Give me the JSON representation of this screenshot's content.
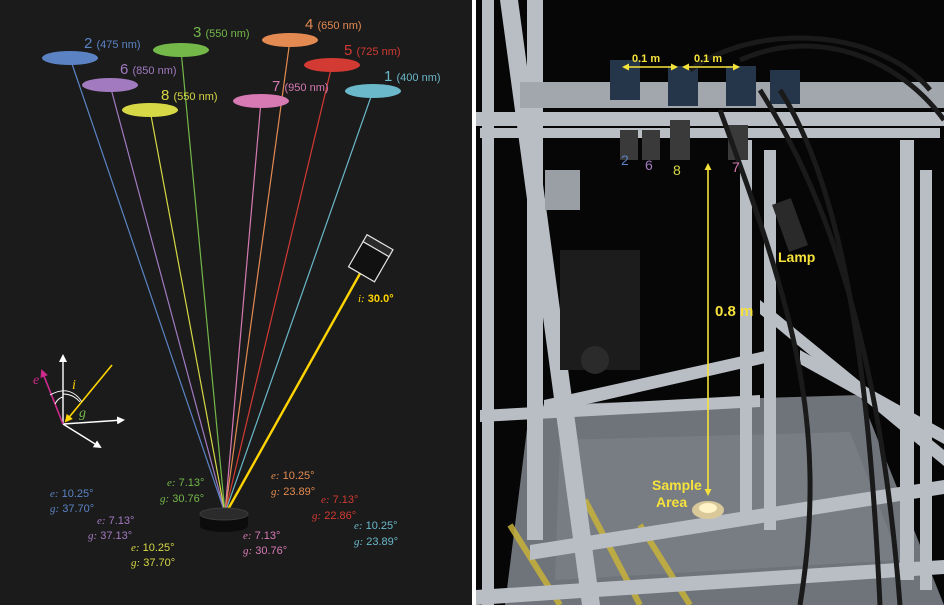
{
  "colors": {
    "c1": "#6ab8c9",
    "c2": "#5b83c4",
    "c3": "#74b84a",
    "c4": "#e28a52",
    "c5": "#d23a33",
    "c6": "#a17ac0",
    "c7": "#d77ab4",
    "c8": "#d6d845",
    "lamp": "#ffd400",
    "white": "#ffffff",
    "e_arrow": "#cc2a8c"
  },
  "cameras": [
    {
      "id": "1",
      "wavelength": "(400 nm)",
      "color": "c1"
    },
    {
      "id": "2",
      "wavelength": "(475 nm)",
      "color": "c2"
    },
    {
      "id": "3",
      "wavelength": "(550 nm)",
      "color": "c3"
    },
    {
      "id": "4",
      "wavelength": "(650 nm)",
      "color": "c4"
    },
    {
      "id": "5",
      "wavelength": "(725 nm)",
      "color": "c5"
    },
    {
      "id": "6",
      "wavelength": "(850 nm)",
      "color": "c6"
    },
    {
      "id": "7",
      "wavelength": "(950 nm)",
      "color": "c7"
    },
    {
      "id": "8",
      "wavelength": "(550 nm)",
      "color": "c8"
    }
  ],
  "light_source": {
    "label": "i:",
    "angle": "30.0°"
  },
  "angle_labels": [
    {
      "cam": "2",
      "e": "10.25°",
      "g": "37.70°"
    },
    {
      "cam": "6",
      "e": "7.13°",
      "g": "37.13°"
    },
    {
      "cam": "8",
      "e": "10.25°",
      "g": "37.70°"
    },
    {
      "cam": "3",
      "e": "7.13°",
      "g": "30.76°"
    },
    {
      "cam": "4",
      "e": "10.25°",
      "g": "23.89°"
    },
    {
      "cam": "5",
      "e": "7.13°",
      "g": "22.86°"
    },
    {
      "cam": "7",
      "e": "7.13°",
      "g": "30.76°"
    },
    {
      "cam": "1",
      "e": "10.25°",
      "g": "23.89°"
    }
  ],
  "angle_symbols": {
    "e": "e:",
    "g": "g:"
  },
  "axes_legend": {
    "e": "e",
    "i": "i",
    "g": "g"
  },
  "photo": {
    "spacing_left": "0.1 m",
    "spacing_right": "0.1 m",
    "cam_numbers": [
      "2",
      "6",
      "8",
      "7"
    ],
    "height": "0.8 m",
    "lamp": "Lamp",
    "sample_line1": "Sample",
    "sample_line2": "Area"
  }
}
